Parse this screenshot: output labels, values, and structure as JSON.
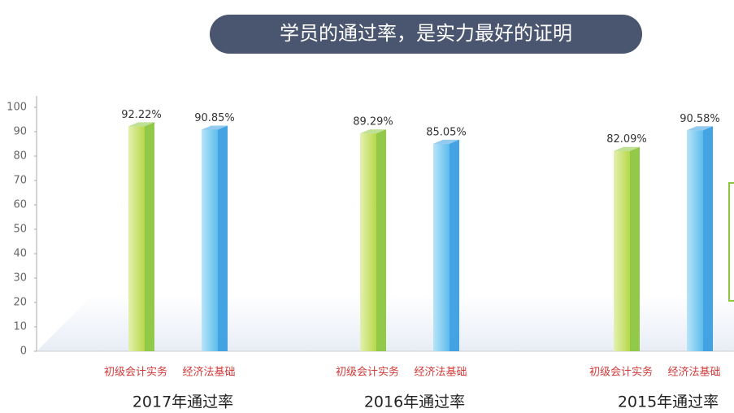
{
  "chart_data": {
    "type": "bar",
    "title": "学员的通过率，是实力最好的证明",
    "categories": [
      "2017年通过率",
      "2016年通过率",
      "2015年通过率"
    ],
    "series": [
      {
        "name": "初级会计实务",
        "color": "#8cc63f",
        "values": [
          92.22,
          89.29,
          82.09
        ],
        "value_labels": [
          "92.22%",
          "89.29%",
          "82.09%"
        ]
      },
      {
        "name": "经济法基础",
        "color": "#3a9ee0",
        "values": [
          90.85,
          85.05,
          90.58
        ],
        "value_labels": [
          "90.85%",
          "85.05%",
          "90.58%"
        ]
      }
    ],
    "ylim": [
      0,
      100
    ],
    "yticks": [
      0,
      10,
      20,
      30,
      40,
      50,
      60,
      70,
      80,
      90,
      100
    ]
  }
}
